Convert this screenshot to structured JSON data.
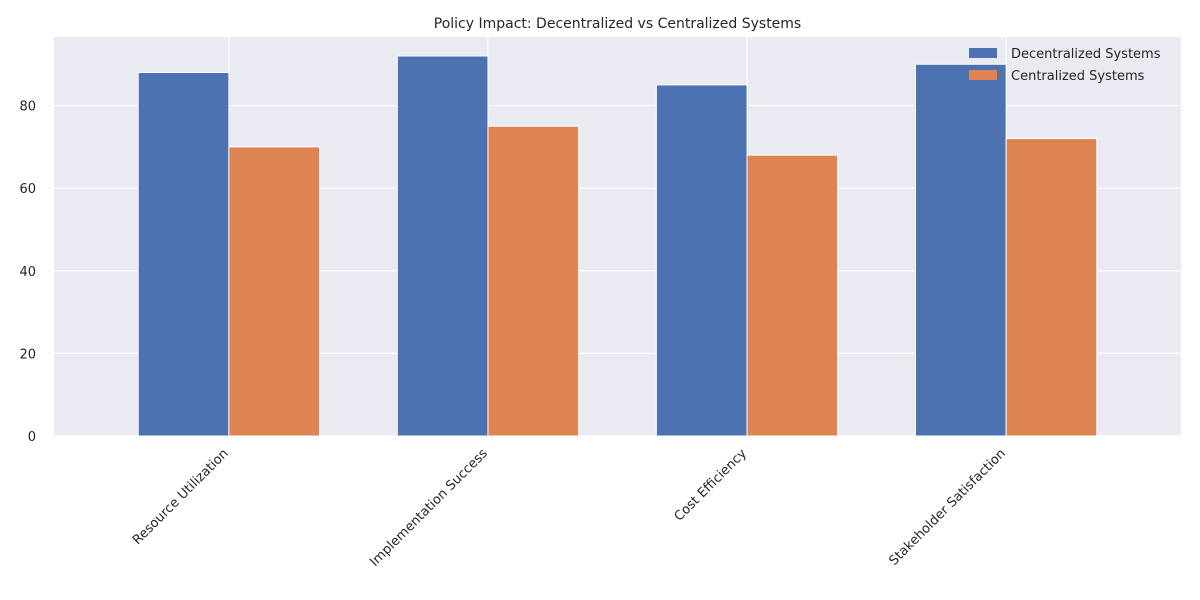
{
  "chart_data": {
    "type": "bar",
    "title": "Policy Impact: Decentralized vs Centralized Systems",
    "xlabel": "",
    "ylabel": "",
    "categories": [
      "Resource Utilization",
      "Implementation Success",
      "Cost Efficiency",
      "Stakeholder Satisfaction"
    ],
    "series": [
      {
        "name": "Decentralized Systems",
        "values": [
          88,
          92,
          85,
          90
        ],
        "color": "#4c72b0"
      },
      {
        "name": "Centralized Systems",
        "values": [
          70,
          75,
          68,
          72
        ],
        "color": "#dd8452"
      }
    ],
    "ylim": [
      0,
      96.6
    ],
    "yticks": [
      0,
      20,
      40,
      60,
      80
    ],
    "grid": true,
    "legend_position": "top-right",
    "background_color": "#eaeaf2",
    "grid_color": "#ffffff"
  }
}
